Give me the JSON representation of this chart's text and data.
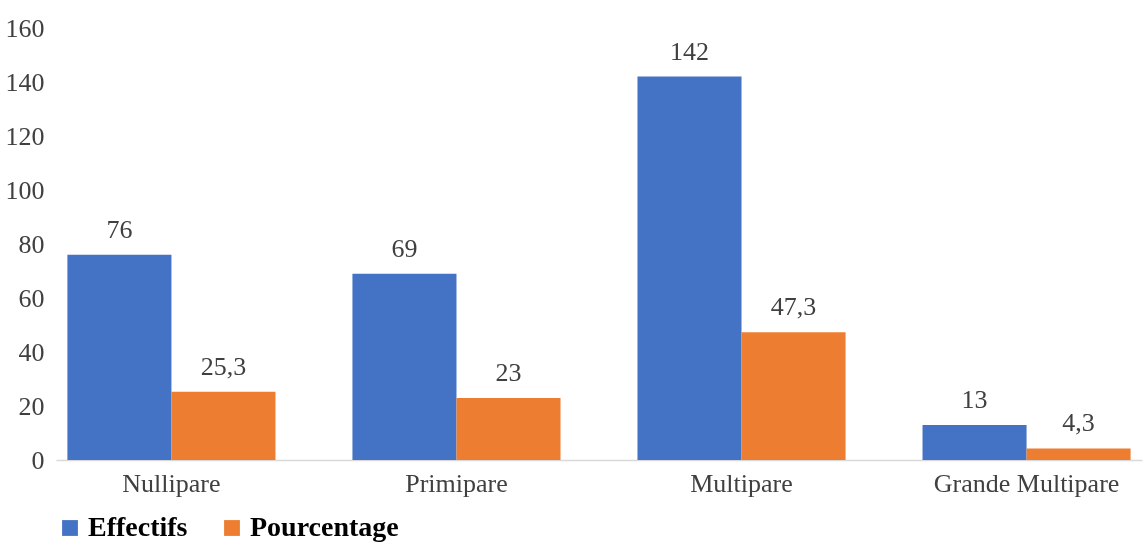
{
  "chart_data": {
    "type": "bar",
    "categories": [
      "Nullipare",
      "Primipare",
      "Multipare",
      "Grande Multipare"
    ],
    "series": [
      {
        "name": "Effectifs",
        "color": "#4472c4",
        "values": [
          76,
          69,
          142,
          13
        ],
        "value_labels": [
          "76",
          "69",
          "142",
          "13"
        ]
      },
      {
        "name": "Pourcentage",
        "color": "#ed7d31",
        "values": [
          25.3,
          23,
          47.3,
          4.3
        ],
        "value_labels": [
          "25,3",
          "23",
          "47,3",
          "4,3"
        ]
      }
    ],
    "ylim": [
      0,
      160
    ],
    "yticks": [
      0,
      20,
      40,
      60,
      80,
      100,
      120,
      140,
      160
    ],
    "grid": false,
    "legend": "bottom"
  }
}
